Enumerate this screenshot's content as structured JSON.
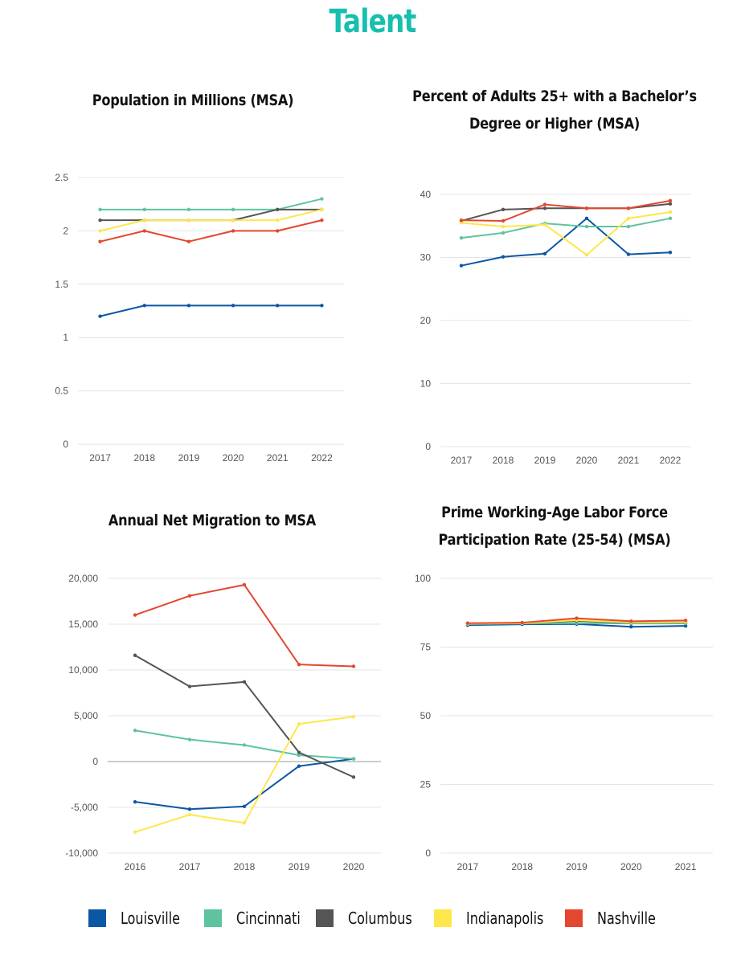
{
  "page_title": "Talent",
  "colors": {
    "title": "#17bfae",
    "Louisville": "#0c57a3",
    "Cincinnati": "#5ec4a0",
    "Columbus": "#555555",
    "Indianapolis": "#fde74c",
    "Nashville": "#e4472f",
    "grid": "#e4e4e4",
    "zero_line": "#9a9a9a"
  },
  "legend": [
    "Louisville",
    "Cincinnati",
    "Columbus",
    "Indianapolis",
    "Nashville"
  ],
  "chart_data": [
    {
      "type": "line",
      "title": "Population in Millions (MSA)",
      "x": [
        "2017",
        "2018",
        "2019",
        "2020",
        "2021",
        "2022"
      ],
      "yticks": [
        "0",
        "0.5",
        "1",
        "1.5",
        "2",
        "2.5"
      ],
      "ylim": [
        0,
        2.5
      ],
      "grid": true,
      "series": [
        {
          "name": "Louisville",
          "values": [
            1.2,
            1.3,
            1.3,
            1.3,
            1.3,
            1.3
          ]
        },
        {
          "name": "Cincinnati",
          "values": [
            2.2,
            2.2,
            2.2,
            2.2,
            2.2,
            2.3
          ]
        },
        {
          "name": "Columbus",
          "values": [
            2.1,
            2.1,
            2.1,
            2.1,
            2.2,
            2.2
          ]
        },
        {
          "name": "Indianapolis",
          "values": [
            2.0,
            2.1,
            2.1,
            2.1,
            2.1,
            2.2
          ]
        },
        {
          "name": "Nashville",
          "values": [
            1.9,
            2.0,
            1.9,
            2.0,
            2.0,
            2.1
          ]
        }
      ]
    },
    {
      "type": "line",
      "title": "Percent of Adults 25+ with a Bachelor’s Degree or Higher (MSA)",
      "x": [
        "2017",
        "2018",
        "2019",
        "2020",
        "2021",
        "2022"
      ],
      "yticks": [
        "0",
        "10",
        "20",
        "30",
        "40"
      ],
      "ylim": [
        0,
        40
      ],
      "grid": true,
      "series": [
        {
          "name": "Louisville",
          "values": [
            28.7,
            30.1,
            30.6,
            36.2,
            30.5,
            30.8
          ]
        },
        {
          "name": "Cincinnati",
          "values": [
            33.1,
            33.9,
            35.4,
            34.9,
            34.9,
            36.2
          ]
        },
        {
          "name": "Columbus",
          "values": [
            35.8,
            37.6,
            37.8,
            37.8,
            37.8,
            38.5
          ]
        },
        {
          "name": "Indianapolis",
          "values": [
            35.5,
            34.9,
            35.2,
            30.4,
            36.2,
            37.2
          ]
        },
        {
          "name": "Nashville",
          "values": [
            35.9,
            35.8,
            38.4,
            37.8,
            37.8,
            39.0
          ]
        }
      ]
    },
    {
      "type": "line",
      "title": "Annual Net Migration to MSA",
      "x": [
        "2016",
        "2017",
        "2018",
        "2019",
        "2020"
      ],
      "yticks": [
        "-10,000",
        "-5,000",
        "0",
        "5,000",
        "10,000",
        "15,000",
        "20,000"
      ],
      "ylim": [
        -10000,
        20000
      ],
      "grid": true,
      "series": [
        {
          "name": "Louisville",
          "values": [
            -4400,
            -5200,
            -4900,
            -500,
            300
          ]
        },
        {
          "name": "Cincinnati",
          "values": [
            3400,
            2400,
            1800,
            700,
            300
          ]
        },
        {
          "name": "Columbus",
          "values": [
            11600,
            8200,
            8700,
            1000,
            -1700
          ]
        },
        {
          "name": "Indianapolis",
          "values": [
            -7700,
            -5800,
            -6700,
            4100,
            4900
          ]
        },
        {
          "name": "Nashville",
          "values": [
            16000,
            18100,
            19300,
            10600,
            10400
          ]
        }
      ]
    },
    {
      "type": "line",
      "title": "Prime Working-Age Labor Force Participation Rate (25-54) (MSA)",
      "x": [
        "2017",
        "2018",
        "2019",
        "2020",
        "2021"
      ],
      "yticks": [
        "0",
        "25",
        "50",
        "75",
        "100"
      ],
      "ylim": [
        0,
        100
      ],
      "grid": true,
      "series": [
        {
          "name": "Louisville",
          "values": [
            83.0,
            83.3,
            83.4,
            82.4,
            82.7
          ]
        },
        {
          "name": "Cincinnati",
          "values": [
            83.4,
            83.6,
            83.7,
            83.6,
            83.6
          ]
        },
        {
          "name": "Columbus",
          "values": [
            83.6,
            83.7,
            84.5,
            83.9,
            84.0
          ]
        },
        {
          "name": "Indianapolis",
          "values": [
            83.5,
            83.7,
            84.8,
            84.0,
            84.1
          ]
        },
        {
          "name": "Nashville",
          "values": [
            83.7,
            83.9,
            85.5,
            84.4,
            84.7
          ]
        }
      ]
    }
  ]
}
